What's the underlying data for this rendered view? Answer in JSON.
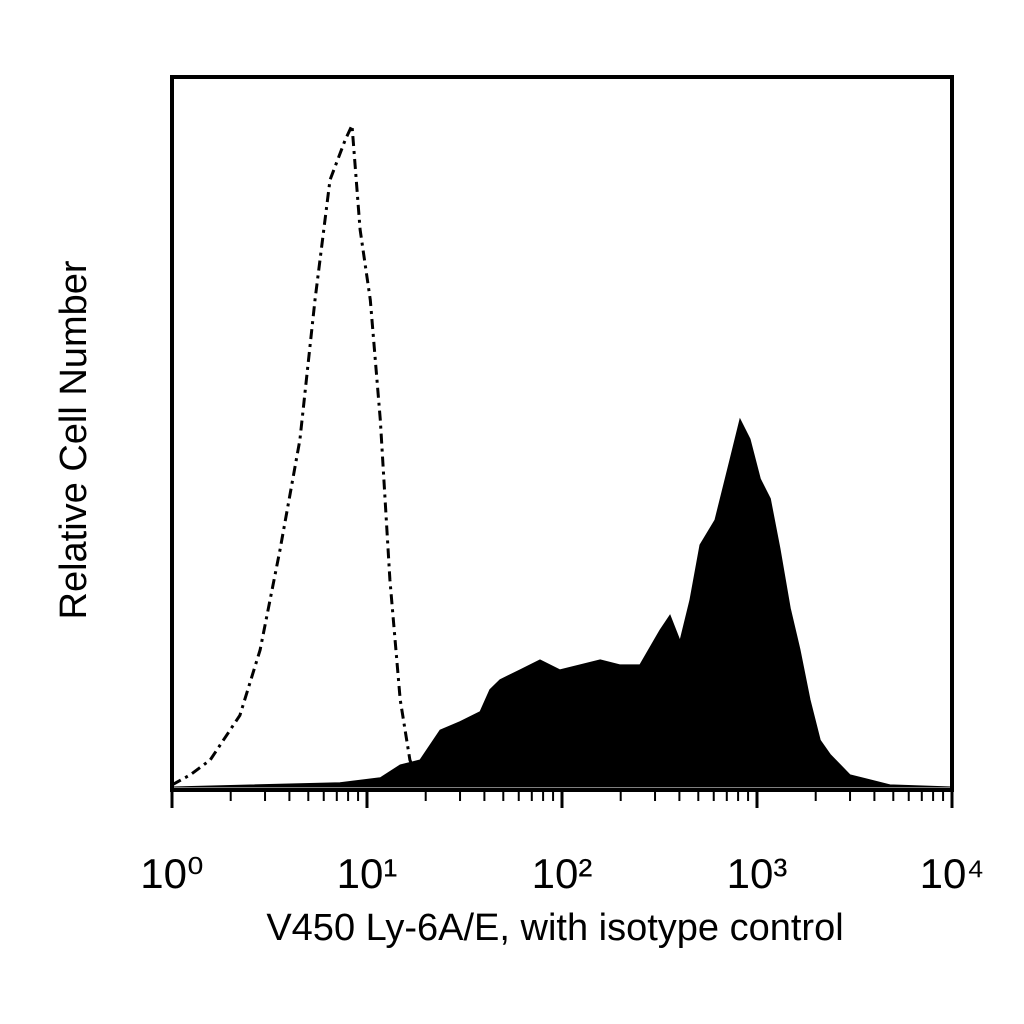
{
  "chart_data": {
    "type": "histogram-overlay",
    "x_label": "V450 Ly-6A/E, with isotype control",
    "y_label": "Relative Cell Number",
    "xscale": "log",
    "xlim": [
      1,
      10000
    ],
    "ylim": [
      0,
      100
    ],
    "xticks": [
      {
        "value": 1,
        "label": "10⁰"
      },
      {
        "value": 10,
        "label": "10¹"
      },
      {
        "value": 100,
        "label": "10²"
      },
      {
        "value": 1000,
        "label": "10³"
      },
      {
        "value": 10000,
        "label": "10⁴"
      }
    ],
    "xminorticks": [
      2,
      3,
      4,
      5,
      6,
      7,
      8,
      9,
      20,
      30,
      40,
      50,
      60,
      70,
      80,
      90,
      200,
      300,
      400,
      500,
      600,
      700,
      800,
      900,
      2000,
      3000,
      4000,
      5000,
      6000,
      7000,
      8000,
      9000
    ],
    "series": [
      {
        "style": "filled",
        "color": "#000000",
        "x": [
          1,
          7.27,
          11.7,
          14.8,
          18.7,
          23.7,
          30.0,
          38.0,
          42.7,
          48.1,
          60.9,
          77.1,
          97.7,
          124,
          157,
          198,
          251,
          318,
          358,
          403,
          453,
          510,
          609,
          727,
          818,
          921,
          1040,
          1170,
          1310,
          1480,
          1660,
          1870,
          2110,
          2370,
          3000,
          3800,
          4810,
          10000
        ],
        "values": [
          0,
          0.6,
          1.3,
          3.1,
          3.8,
          8.0,
          9.2,
          10.6,
          13.7,
          15.1,
          16.5,
          17.9,
          16.5,
          17.2,
          17.9,
          17.2,
          17.2,
          22.1,
          24.2,
          20.6,
          26.3,
          34.1,
          37.6,
          46.1,
          51.8,
          49.0,
          43.4,
          40.6,
          33.6,
          25.2,
          19.4,
          12.3,
          6.6,
          4.6,
          1.7,
          1.0,
          0.3,
          0
        ]
      },
      {
        "style": "dashed",
        "color": "#000000",
        "x": [
          1,
          1.24,
          1.57,
          2.23,
          2.83,
          3.58,
          4.53,
          5.41,
          6.46,
          7.72,
          8.38,
          9.22,
          10.4,
          11.7,
          13.1,
          14.8,
          16.6,
          18.7
        ],
        "values": [
          0.3,
          1.7,
          3.8,
          10.1,
          19.3,
          33.4,
          48.9,
          68.6,
          85.5,
          91.1,
          93.2,
          78.5,
          68.6,
          51.7,
          29.2,
          12.3,
          3.8,
          0.3
        ]
      }
    ]
  }
}
